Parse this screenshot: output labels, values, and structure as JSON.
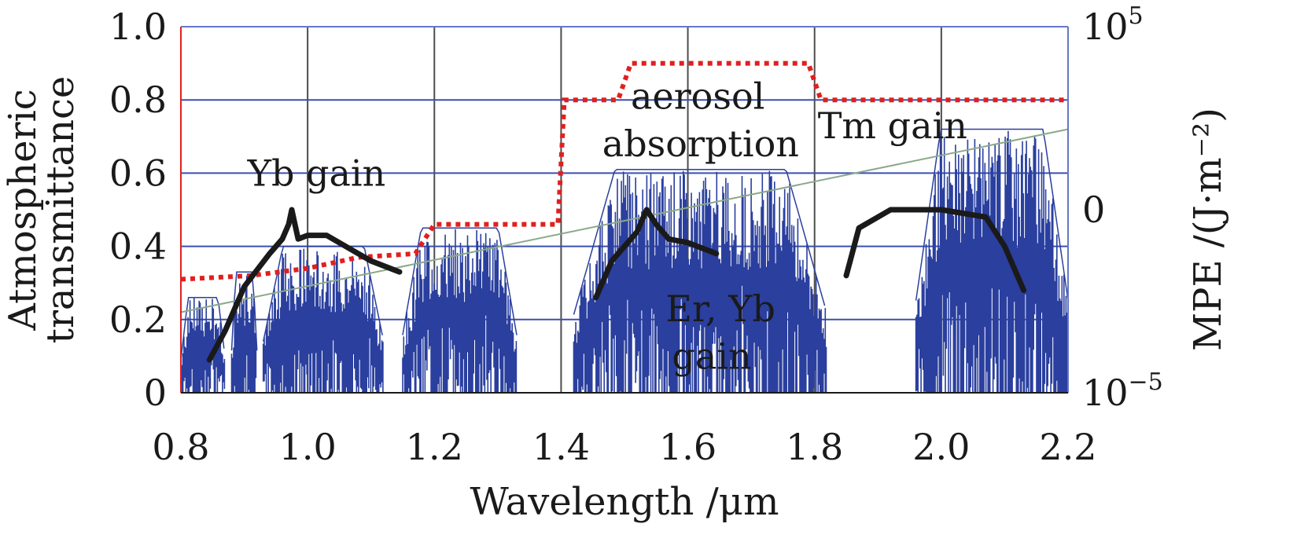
{
  "chart_data": {
    "type": "line",
    "xlabel": "Wavelength /μm",
    "ylabel_left": [
      "Atmospheric",
      "transmittance"
    ],
    "ylabel_right": "MPE /(J·m⁻²)",
    "xlim": [
      0.8,
      2.2
    ],
    "ylim": [
      0,
      1.0
    ],
    "x_ticks": [
      "0.8",
      "1.0",
      "1.2",
      "1.4",
      "1.6",
      "1.8",
      "2.0",
      "2.2"
    ],
    "y_ticks_left": [
      "0",
      "0.2",
      "0.4",
      "0.6",
      "0.8",
      "1.0"
    ],
    "y_ticks_right": [
      {
        "base": "10",
        "exp": "−5",
        "value": 0
      },
      {
        "base": "0",
        "exp": "",
        "value": 0.5
      },
      {
        "base": "10",
        "exp": "5",
        "value": 1.0
      }
    ],
    "grid": true,
    "colors": {
      "transmittance": "#2a3f9e",
      "mpe": "#e0201f",
      "gain": "#1a1a1a",
      "aerosol": "#8aa98a",
      "grid_vertical": "#4d4d4d",
      "grid_horizontal": "#3a4fb0",
      "frame": "#6677c7"
    },
    "series": [
      {
        "role": "transmittance",
        "bands": [
          {
            "x0": 0.8,
            "x1": 0.87,
            "hi": 0.26
          },
          {
            "x0": 0.88,
            "x1": 0.92,
            "hi": 0.33
          },
          {
            "x0": 0.93,
            "x1": 1.12,
            "hi": 0.4
          },
          {
            "x0": 1.15,
            "x1": 1.33,
            "hi": 0.45
          },
          {
            "x0": 1.42,
            "x1": 1.82,
            "hi": 0.61
          },
          {
            "x0": 1.96,
            "x1": 2.2,
            "hi": 0.72
          }
        ]
      },
      {
        "role": "mpe",
        "x": [
          0.8,
          0.91,
          1.0,
          1.08,
          1.17,
          1.2,
          1.395,
          1.405,
          1.49,
          1.51,
          1.79,
          1.81,
          2.2
        ],
        "y": [
          0.31,
          0.32,
          0.34,
          0.37,
          0.38,
          0.46,
          0.46,
          0.8,
          0.8,
          0.9,
          0.9,
          0.8,
          0.8
        ]
      },
      {
        "role": "aerosol",
        "x": [
          0.8,
          2.2
        ],
        "y": [
          0.22,
          0.72
        ]
      },
      {
        "role": "yb_gain",
        "x": [
          0.845,
          0.87,
          0.9,
          0.94,
          0.96,
          0.97,
          0.975,
          0.98,
          0.985,
          1.0,
          1.03,
          1.06,
          1.1,
          1.145
        ],
        "y": [
          0.09,
          0.17,
          0.29,
          0.38,
          0.42,
          0.46,
          0.5,
          0.46,
          0.42,
          0.43,
          0.43,
          0.4,
          0.36,
          0.33
        ]
      },
      {
        "role": "er_yb_gain",
        "x": [
          1.455,
          1.48,
          1.51,
          1.52,
          1.535,
          1.55,
          1.57,
          1.6,
          1.645
        ],
        "y": [
          0.26,
          0.36,
          0.42,
          0.44,
          0.5,
          0.46,
          0.42,
          0.41,
          0.38
        ]
      },
      {
        "role": "tm_gain",
        "x": [
          1.85,
          1.87,
          1.92,
          2.0,
          2.07,
          2.1,
          2.13
        ],
        "y": [
          0.32,
          0.45,
          0.5,
          0.5,
          0.48,
          0.4,
          0.28
        ]
      }
    ],
    "annotations": [
      {
        "text": "Yb gain",
        "x": 0.905,
        "y": 0.6
      },
      {
        "text": "aerosol",
        "x": 1.51,
        "y": 0.81
      },
      {
        "text": "absorption",
        "x": 1.465,
        "y": 0.68
      },
      {
        "text": "Tm gain",
        "x": 1.805,
        "y": 0.73
      },
      {
        "text": "Er, Yb",
        "x": 1.565,
        "y": 0.23
      },
      {
        "text": "gain",
        "x": 1.575,
        "y": 0.1
      }
    ]
  }
}
